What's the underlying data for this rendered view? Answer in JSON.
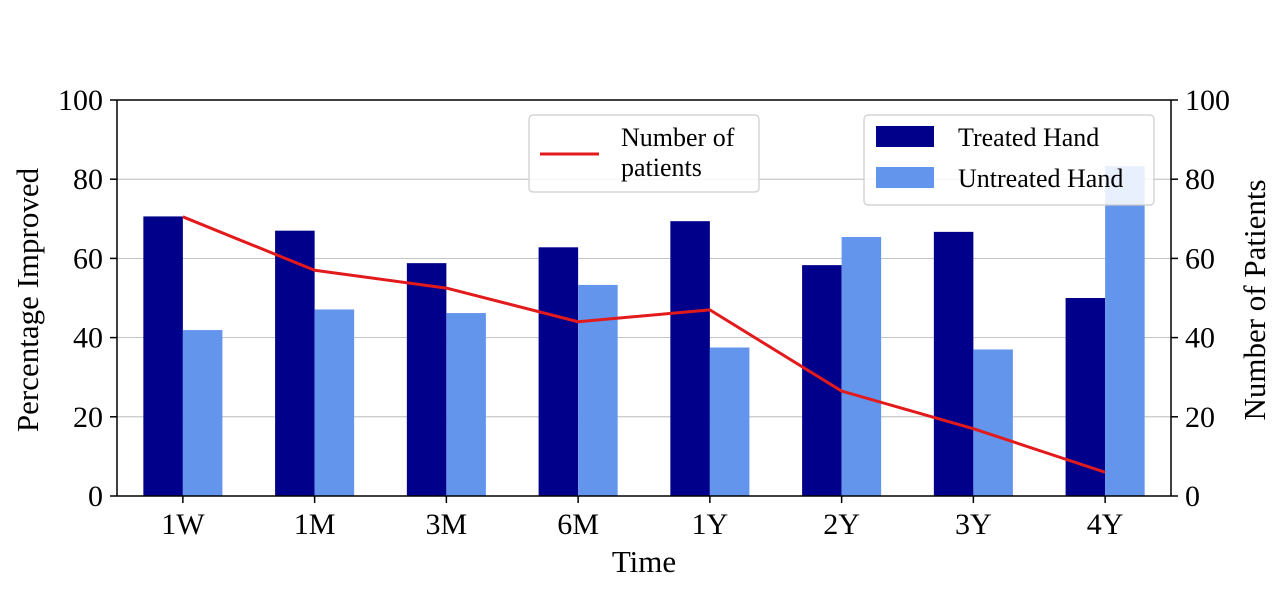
{
  "chart_data": {
    "type": "bar",
    "title": "",
    "xlabel": "Time",
    "ylabel": "Percentage Improved",
    "y2label": "Number of Patients",
    "categories": [
      "1W",
      "1M",
      "3M",
      "6M",
      "1Y",
      "2Y",
      "3Y",
      "4Y"
    ],
    "ylim": [
      0,
      100
    ],
    "y2lim": [
      0,
      100
    ],
    "yticks": [
      "0",
      "20",
      "40",
      "60",
      "80",
      "100"
    ],
    "y2ticks": [
      "0",
      "20",
      "40",
      "60",
      "80",
      "100"
    ],
    "grid": "horizontal",
    "series": [
      {
        "name": "Treated Hand",
        "type": "bar",
        "axis": "left",
        "color": "#00008b",
        "values": [
          70.6,
          67.0,
          58.8,
          62.8,
          69.4,
          58.3,
          66.7,
          50.0
        ]
      },
      {
        "name": "Untreated Hand",
        "type": "bar",
        "axis": "left",
        "color": "#6495ed",
        "values": [
          41.9,
          47.1,
          46.2,
          53.3,
          37.5,
          65.4,
          37.0,
          83.3
        ]
      },
      {
        "name": "Number of patients",
        "type": "line",
        "axis": "right",
        "color": "#e31a1c",
        "values": [
          70.5,
          57.0,
          52.5,
          44.0,
          47.0,
          26.5,
          17.0,
          6.0
        ]
      }
    ],
    "legends": [
      {
        "position": "top-center",
        "entries": [
          {
            "label_lines": [
              "Number of",
              "patients"
            ],
            "series": 2
          }
        ]
      },
      {
        "position": "top-right",
        "entries": [
          {
            "label": "Treated Hand",
            "series": 0
          },
          {
            "label": "Untreated Hand",
            "series": 1
          }
        ]
      }
    ]
  }
}
